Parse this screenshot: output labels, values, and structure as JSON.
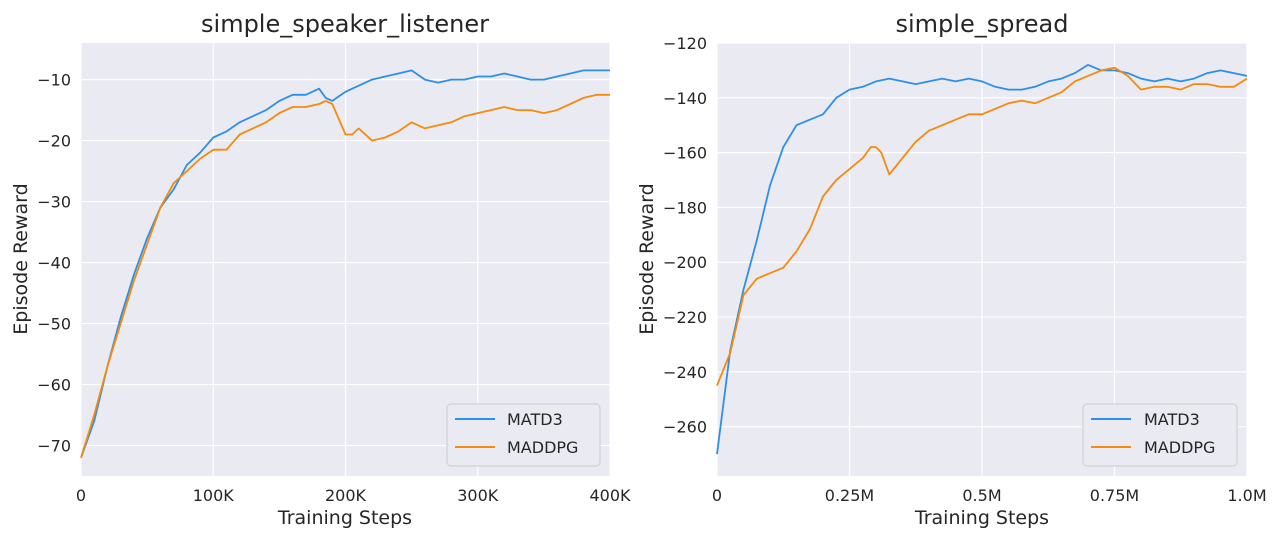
{
  "colors": {
    "background": "#eaeaf2",
    "grid": "#ffffff",
    "matd3": "#2c8fe8",
    "maddpg": "#f58a0c",
    "text": "#262626"
  },
  "chart_data": [
    {
      "type": "line",
      "title": "simple_speaker_listener",
      "xlabel": "Training Steps",
      "ylabel": "Episode Reward",
      "xlim": [
        0,
        400000
      ],
      "ylim": [
        -75,
        -4
      ],
      "grid": true,
      "legend_position": "bottom-right",
      "xticks": [
        0,
        100000,
        200000,
        300000,
        400000
      ],
      "xtick_labels": [
        "0",
        "100K",
        "200K",
        "300K",
        "400K"
      ],
      "yticks": [
        -70,
        -60,
        -50,
        -40,
        -30,
        -20,
        -10
      ],
      "ytick_labels": [
        "−70",
        "−60",
        "−50",
        "−40",
        "−30",
        "−20",
        "−10"
      ],
      "series": [
        {
          "name": "MATD3",
          "x": [
            0,
            10000,
            20000,
            30000,
            40000,
            50000,
            60000,
            70000,
            80000,
            90000,
            100000,
            110000,
            120000,
            130000,
            140000,
            150000,
            160000,
            170000,
            180000,
            185000,
            190000,
            200000,
            210000,
            220000,
            230000,
            240000,
            250000,
            260000,
            270000,
            280000,
            290000,
            300000,
            310000,
            320000,
            330000,
            340000,
            350000,
            360000,
            370000,
            380000,
            390000,
            400000
          ],
          "y": [
            -72,
            -66,
            -57,
            -49,
            -42,
            -36,
            -31,
            -28,
            -24,
            -22,
            -19.5,
            -18.5,
            -17,
            -16,
            -15,
            -13.5,
            -12.5,
            -12.5,
            -11.5,
            -13,
            -13.5,
            -12,
            -11,
            -10,
            -9.5,
            -9,
            -8.5,
            -10,
            -10.5,
            -10,
            -10,
            -9.5,
            -9.5,
            -9,
            -9.5,
            -10,
            -10,
            -9.5,
            -9,
            -8.5,
            -8.5,
            -8.5
          ]
        },
        {
          "name": "MADDPG",
          "x": [
            0,
            10000,
            20000,
            30000,
            40000,
            50000,
            60000,
            70000,
            80000,
            90000,
            100000,
            110000,
            120000,
            130000,
            140000,
            150000,
            160000,
            170000,
            180000,
            185000,
            190000,
            200000,
            205000,
            210000,
            220000,
            230000,
            240000,
            250000,
            260000,
            270000,
            280000,
            290000,
            300000,
            310000,
            320000,
            330000,
            340000,
            350000,
            360000,
            370000,
            380000,
            390000,
            400000
          ],
          "y": [
            -72,
            -65,
            -57,
            -50,
            -43,
            -37,
            -31,
            -27,
            -25,
            -23,
            -21.5,
            -21.5,
            -19,
            -18,
            -17,
            -15.5,
            -14.5,
            -14.5,
            -14,
            -13.5,
            -14,
            -19,
            -19,
            -18,
            -20,
            -19.5,
            -18.5,
            -17,
            -18,
            -17.5,
            -17,
            -16,
            -15.5,
            -15,
            -14.5,
            -15,
            -15,
            -15.5,
            -15,
            -14,
            -13,
            -12.5,
            -12.5
          ]
        }
      ]
    },
    {
      "type": "line",
      "title": "simple_spread",
      "xlabel": "Training Steps",
      "ylabel": "Episode Reward",
      "xlim": [
        0,
        1000000
      ],
      "ylim": [
        -278,
        -120
      ],
      "grid": true,
      "legend_position": "bottom-right",
      "xticks": [
        0,
        250000,
        500000,
        750000,
        1000000
      ],
      "xtick_labels": [
        "0",
        "0.25M",
        "0.5M",
        "0.75M",
        "1.0M"
      ],
      "yticks": [
        -260,
        -240,
        -220,
        -200,
        -180,
        -160,
        -140,
        -120
      ],
      "ytick_labels": [
        "−260",
        "−240",
        "−220",
        "−200",
        "−180",
        "−160",
        "−140",
        "−120"
      ],
      "series": [
        {
          "name": "MATD3",
          "x": [
            0,
            25000,
            50000,
            75000,
            100000,
            125000,
            150000,
            175000,
            200000,
            225000,
            250000,
            275000,
            300000,
            325000,
            350000,
            375000,
            400000,
            425000,
            450000,
            475000,
            500000,
            525000,
            550000,
            575000,
            600000,
            625000,
            650000,
            675000,
            700000,
            725000,
            750000,
            775000,
            800000,
            825000,
            850000,
            875000,
            900000,
            925000,
            950000,
            975000,
            1000000
          ],
          "y": [
            -270,
            -232,
            -210,
            -192,
            -172,
            -158,
            -150,
            -148,
            -146,
            -140,
            -137,
            -136,
            -134,
            -133,
            -134,
            -135,
            -134,
            -133,
            -134,
            -133,
            -134,
            -136,
            -137,
            -137,
            -136,
            -134,
            -133,
            -131,
            -128,
            -130,
            -130,
            -131,
            -133,
            -134,
            -133,
            -134,
            -133,
            -131,
            -130,
            -131,
            -132
          ]
        },
        {
          "name": "MADDPG",
          "x": [
            0,
            25000,
            50000,
            75000,
            100000,
            125000,
            150000,
            175000,
            200000,
            225000,
            250000,
            275000,
            290000,
            300000,
            310000,
            325000,
            350000,
            375000,
            400000,
            425000,
            450000,
            475000,
            500000,
            525000,
            550000,
            575000,
            600000,
            625000,
            650000,
            675000,
            700000,
            725000,
            750000,
            775000,
            800000,
            825000,
            850000,
            875000,
            900000,
            925000,
            950000,
            975000,
            1000000
          ],
          "y": [
            -245,
            -233,
            -212,
            -206,
            -204,
            -202,
            -196,
            -188,
            -176,
            -170,
            -166,
            -162,
            -158,
            -158,
            -160,
            -168,
            -162,
            -156,
            -152,
            -150,
            -148,
            -146,
            -146,
            -144,
            -142,
            -141,
            -142,
            -140,
            -138,
            -134,
            -132,
            -130,
            -129,
            -132,
            -137,
            -136,
            -136,
            -137,
            -135,
            -135,
            -136,
            -136,
            -133
          ]
        }
      ]
    }
  ]
}
